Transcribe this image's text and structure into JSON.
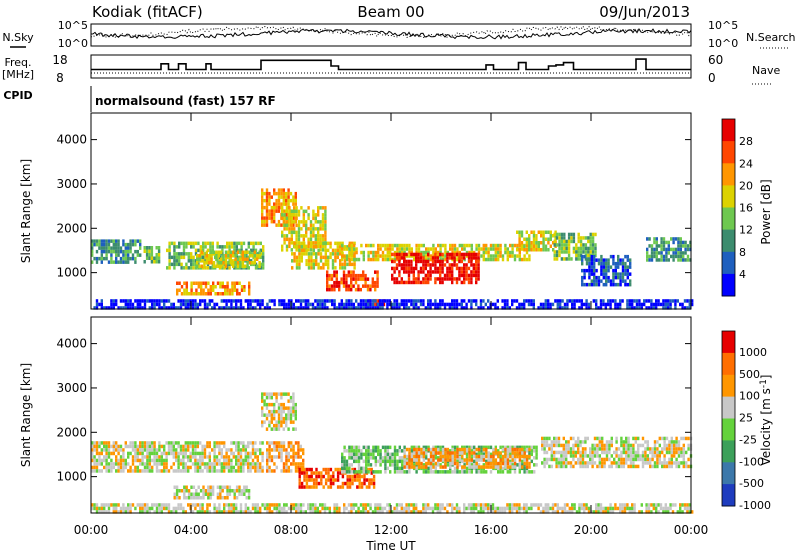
{
  "header": {
    "station": "Kodiak (fitACF)",
    "beam": "Beam 00",
    "date": "09/Jun/2013"
  },
  "sky_panel": {
    "left_label": "N.Sky",
    "left_ticks": [
      "10^5",
      "10^0"
    ],
    "right_ticks": [
      "10^5",
      "10^0"
    ],
    "right_label": "N.Search"
  },
  "freq_panel": {
    "left_label_top": "Freq.",
    "left_label_unit": "[MHz]",
    "left_ticks": [
      "18",
      "8"
    ],
    "right_ticks": [
      "60",
      "0"
    ],
    "right_label": "Nave"
  },
  "cpid_panel": {
    "label": "CPID",
    "program": "normalsound (fast) 157 RF"
  },
  "time_axis": {
    "xlabel": "Time UT",
    "ticks": [
      "00:00",
      "04:00",
      "08:00",
      "12:00",
      "16:00",
      "20:00",
      "00:00"
    ]
  },
  "colors": {
    "power_scale": [
      "#0000ff",
      "#1e5fbe",
      "#3c8c6e",
      "#6ec850",
      "#dcd200",
      "#ff9600",
      "#ff4600",
      "#e60000"
    ],
    "velocity_scale": [
      "#1e3cbe",
      "#3c78aa",
      "#3ca05a",
      "#64d23c",
      "#c8c8c8",
      "#ff9600",
      "#ff6e00",
      "#e60000"
    ]
  },
  "chart_data": [
    {
      "type": "heatmap",
      "name": "power",
      "xlabel": "",
      "ylabel": "Slant Range [km]",
      "x_unit": "hours UT",
      "xlim": [
        0,
        24
      ],
      "ylim": [
        180,
        4600
      ],
      "yticks": [
        "1000",
        "2000",
        "3000",
        "4000"
      ],
      "colorbar": {
        "label": "Power [dB]",
        "ticks": [
          "4",
          "8",
          "12",
          "16",
          "20",
          "24",
          "28"
        ]
      },
      "echo_regions": [
        {
          "t": [
            0.0,
            2.0
          ],
          "range": [
            1200,
            1750
          ],
          "level": 2
        },
        {
          "t": [
            2.1,
            2.7
          ],
          "range": [
            1250,
            1600
          ],
          "level": 3
        },
        {
          "t": [
            3.0,
            6.9
          ],
          "range": [
            1100,
            1700
          ],
          "level": 3
        },
        {
          "t": [
            4.2,
            6.7
          ],
          "range": [
            1150,
            1500
          ],
          "level": 4
        },
        {
          "t": [
            3.4,
            6.3
          ],
          "range": [
            500,
            800
          ],
          "level": 5
        },
        {
          "t": [
            6.8,
            8.2
          ],
          "range": [
            2100,
            2900
          ],
          "level": 5
        },
        {
          "t": [
            7.6,
            9.4
          ],
          "range": [
            1500,
            2500
          ],
          "level": 4
        },
        {
          "t": [
            8.0,
            10.5
          ],
          "range": [
            1100,
            1700
          ],
          "level": 4
        },
        {
          "t": [
            9.4,
            11.5
          ],
          "range": [
            650,
            1050
          ],
          "level": 6
        },
        {
          "t": [
            11.0,
            11.7
          ],
          "range": [
            250,
            400
          ],
          "level": 6
        },
        {
          "t": [
            10.0,
            17.5
          ],
          "range": [
            1300,
            1650
          ],
          "level": 4
        },
        {
          "t": [
            12.0,
            15.5
          ],
          "range": [
            800,
            1450
          ],
          "level": 7
        },
        {
          "t": [
            17.0,
            18.6
          ],
          "range": [
            1500,
            1950
          ],
          "level": 4
        },
        {
          "t": [
            18.5,
            20.2
          ],
          "range": [
            1300,
            1900
          ],
          "level": 3
        },
        {
          "t": [
            19.6,
            21.6
          ],
          "range": [
            700,
            1400
          ],
          "level": 1
        },
        {
          "t": [
            22.2,
            24.0
          ],
          "range": [
            1300,
            1800
          ],
          "level": 2
        },
        {
          "t": [
            0.0,
            24.0
          ],
          "range": [
            180,
            400
          ],
          "level": 0
        }
      ]
    },
    {
      "type": "heatmap",
      "name": "velocity",
      "xlabel": "Time UT",
      "ylabel": "Slant Range [km]",
      "x_unit": "hours UT",
      "xlim": [
        0,
        24
      ],
      "ylim": [
        180,
        4600
      ],
      "yticks": [
        "1000",
        "2000",
        "3000",
        "4000"
      ],
      "colorbar": {
        "label": "Velocity [m s^-1]",
        "ticks": [
          "1000",
          "500",
          "100",
          "25",
          "-25",
          "-100",
          "-500",
          "-1000"
        ]
      },
      "echo_regions": [
        {
          "t": [
            0.0,
            6.9
          ],
          "range": [
            1100,
            1800
          ],
          "class": 4
        },
        {
          "t": [
            3.3,
            6.3
          ],
          "range": [
            500,
            800
          ],
          "class": 4
        },
        {
          "t": [
            6.8,
            8.2
          ],
          "range": [
            2100,
            2900
          ],
          "class": 4
        },
        {
          "t": [
            7.0,
            8.5
          ],
          "range": [
            1100,
            1800
          ],
          "class": 5
        },
        {
          "t": [
            8.3,
            11.3
          ],
          "range": [
            800,
            1200
          ],
          "class": 6
        },
        {
          "t": [
            10.0,
            17.8
          ],
          "range": [
            1100,
            1700
          ],
          "class": 3
        },
        {
          "t": [
            12.5,
            17.5
          ],
          "range": [
            1250,
            1650
          ],
          "class": 5
        },
        {
          "t": [
            18.0,
            24.0
          ],
          "range": [
            1200,
            1900
          ],
          "class": 4
        },
        {
          "t": [
            0.0,
            24.0
          ],
          "range": [
            180,
            400
          ],
          "class": 4
        }
      ]
    }
  ]
}
